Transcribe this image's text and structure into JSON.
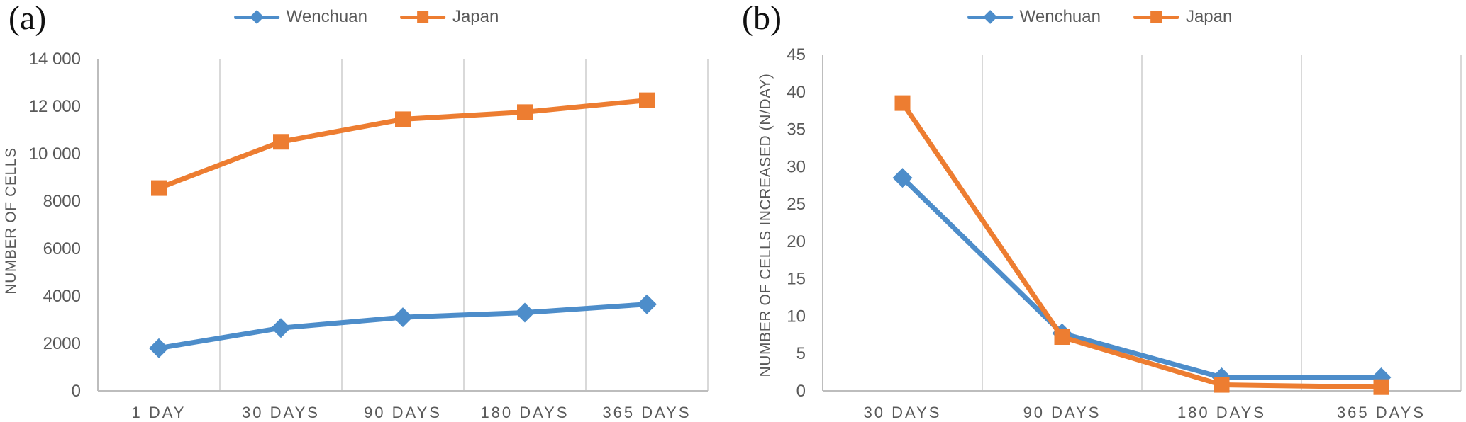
{
  "colors": {
    "series_blue": "#4d8dca",
    "series_orange": "#ed7d31",
    "gridline": "#d9d9d9",
    "axis_line": "#bdbdbd",
    "tick_text": "#595959",
    "panel_label_text": "#111111"
  },
  "chart_data": [
    {
      "panel_label": "(a)",
      "type": "line",
      "title": "",
      "xlabel": "",
      "ylabel": "NUMBER OF CELLS",
      "categories": [
        "1 DAY",
        "30 DAYS",
        "90 DAYS",
        "180 DAYS",
        "365 DAYS"
      ],
      "series": [
        {
          "name": "Wenchuan",
          "marker": "diamond",
          "color": "#4d8dca",
          "values": [
            1800,
            2650,
            3100,
            3300,
            3650
          ]
        },
        {
          "name": "Japan",
          "marker": "square",
          "color": "#ed7d31",
          "values": [
            8550,
            10500,
            11450,
            11750,
            12250
          ]
        }
      ],
      "ylim": [
        0,
        14000
      ],
      "ytick_labels": [
        "0",
        "2000",
        "4000",
        "6000",
        "8000",
        "10 000",
        "12 000",
        "14 000"
      ],
      "grid": "vertical-only",
      "legend_position": "top-center"
    },
    {
      "panel_label": "(b)",
      "type": "line",
      "title": "",
      "xlabel": "",
      "ylabel": "NUMBER OF CELLS INCREASED (N/DAY)",
      "categories": [
        "30 DAYS",
        "90 DAYS",
        "180 DAYS",
        "365 DAYS"
      ],
      "series": [
        {
          "name": "Wenchuan",
          "marker": "diamond",
          "color": "#4d8dca",
          "values": [
            28.5,
            7.7,
            1.8,
            1.8
          ]
        },
        {
          "name": "Japan",
          "marker": "square",
          "color": "#ed7d31",
          "values": [
            38.5,
            7.2,
            0.8,
            0.5
          ]
        }
      ],
      "ylim": [
        0,
        45
      ],
      "ytick_labels": [
        "0",
        "5",
        "10",
        "15",
        "20",
        "25",
        "30",
        "35",
        "40",
        "45"
      ],
      "grid": "vertical-only",
      "legend_position": "top-center"
    }
  ]
}
